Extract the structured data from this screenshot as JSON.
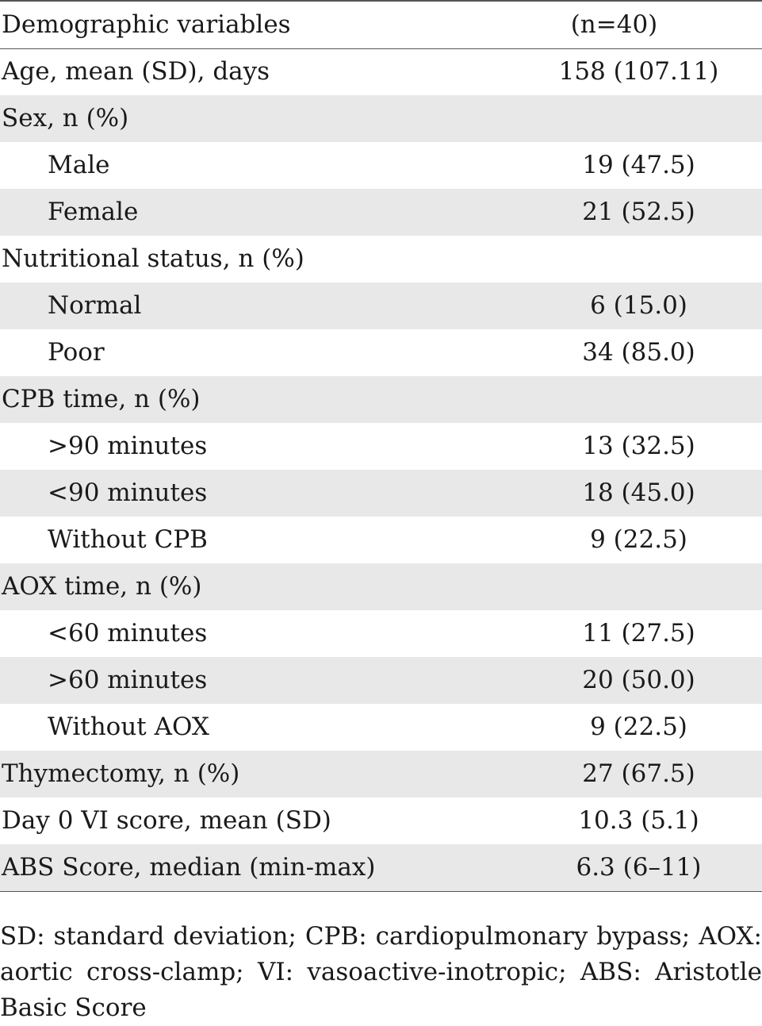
{
  "table": {
    "header": {
      "col1": "Demographic variables",
      "col2": "(n=40)"
    },
    "rows": [
      {
        "label": "Age, mean (SD), days",
        "value": "158 (107.11)",
        "indent": false,
        "shaded": false
      },
      {
        "label": "Sex, n (%)",
        "value": "",
        "indent": false,
        "shaded": true
      },
      {
        "label": "Male",
        "value": "19 (47.5)",
        "indent": true,
        "shaded": false
      },
      {
        "label": "Female",
        "value": "21 (52.5)",
        "indent": true,
        "shaded": true
      },
      {
        "label": "Nutritional status, n (%)",
        "value": "",
        "indent": false,
        "shaded": false
      },
      {
        "label": "Normal",
        "value": "6 (15.0)",
        "indent": true,
        "shaded": true
      },
      {
        "label": "Poor",
        "value": "34 (85.0)",
        "indent": true,
        "shaded": false
      },
      {
        "label": "CPB time, n (%)",
        "value": "",
        "indent": false,
        "shaded": true
      },
      {
        "label": ">90 minutes",
        "value": "13 (32.5)",
        "indent": true,
        "shaded": false
      },
      {
        "label": "<90 minutes",
        "value": "18 (45.0)",
        "indent": true,
        "shaded": true
      },
      {
        "label": "Without CPB",
        "value": "9 (22.5)",
        "indent": true,
        "shaded": false
      },
      {
        "label": "AOX time, n (%)",
        "value": "",
        "indent": false,
        "shaded": true
      },
      {
        "label": "<60 minutes",
        "value": "11 (27.5)",
        "indent": true,
        "shaded": false
      },
      {
        "label": ">60 minutes",
        "value": "20 (50.0)",
        "indent": true,
        "shaded": true
      },
      {
        "label": "Without AOX",
        "value": "9 (22.5)",
        "indent": true,
        "shaded": false
      },
      {
        "label": "Thymectomy, n (%)",
        "value": "27 (67.5)",
        "indent": false,
        "shaded": true
      },
      {
        "label": "Day 0 VI score, mean (SD)",
        "value": "10.3 (5.1)",
        "indent": false,
        "shaded": false
      },
      {
        "label": "ABS Score, median (min-max)",
        "value": "6.3 (6–11)",
        "indent": false,
        "shaded": true
      }
    ]
  },
  "footnote": "SD: standard deviation; CPB: cardiopulmonary bypass; AOX: aortic cross-clamp; VI: vasoactive-inotropic; ABS: Aristotle Basic Score",
  "colors": {
    "shade": "#e8e8e8",
    "rule": "#555555",
    "text": "#1a1a1a"
  }
}
